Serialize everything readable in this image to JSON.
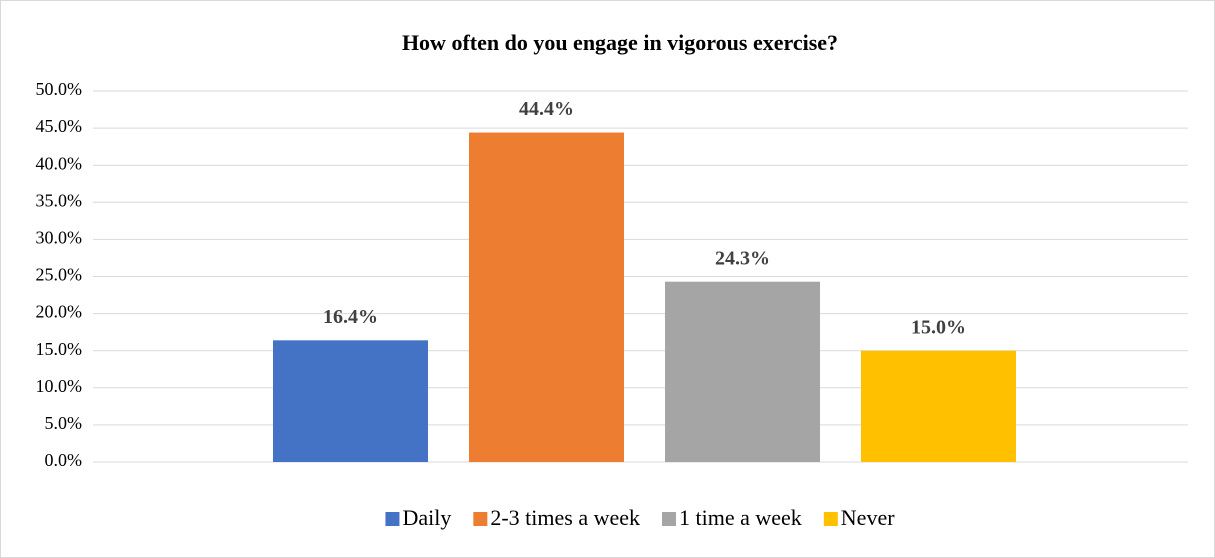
{
  "chart_data": {
    "type": "bar",
    "title": "How often do you engage in vigorous exercise?",
    "categories": [
      null
    ],
    "series": [
      {
        "name": "Daily",
        "color": "#4472c4",
        "values": [
          16.4
        ],
        "value_labels": [
          "16.4%"
        ]
      },
      {
        "name": "2-3 times a week",
        "color": "#ed7d31",
        "values": [
          44.4
        ],
        "value_labels": [
          "44.4%"
        ]
      },
      {
        "name": "1 time a week",
        "color": "#a5a5a5",
        "values": [
          24.3
        ],
        "value_labels": [
          "24.3%"
        ]
      },
      {
        "name": "Never",
        "color": "#ffc000",
        "values": [
          15.0
        ],
        "value_labels": [
          "15.0%"
        ]
      }
    ],
    "ylim": [
      0,
      50
    ],
    "yticks": [
      {
        "value": 0,
        "label": "0.0%"
      },
      {
        "value": 5,
        "label": "5.0%"
      },
      {
        "value": 10,
        "label": "10.0%"
      },
      {
        "value": 15,
        "label": "15.0%"
      },
      {
        "value": 20,
        "label": "20.0%"
      },
      {
        "value": 25,
        "label": "25.0%"
      },
      {
        "value": 30,
        "label": "30.0%"
      },
      {
        "value": 35,
        "label": "35.0%"
      },
      {
        "value": 40,
        "label": "40.0%"
      },
      {
        "value": 45,
        "label": "45.0%"
      },
      {
        "value": 50,
        "label": "50.0%"
      }
    ],
    "grid": true,
    "legend": "bottom"
  }
}
